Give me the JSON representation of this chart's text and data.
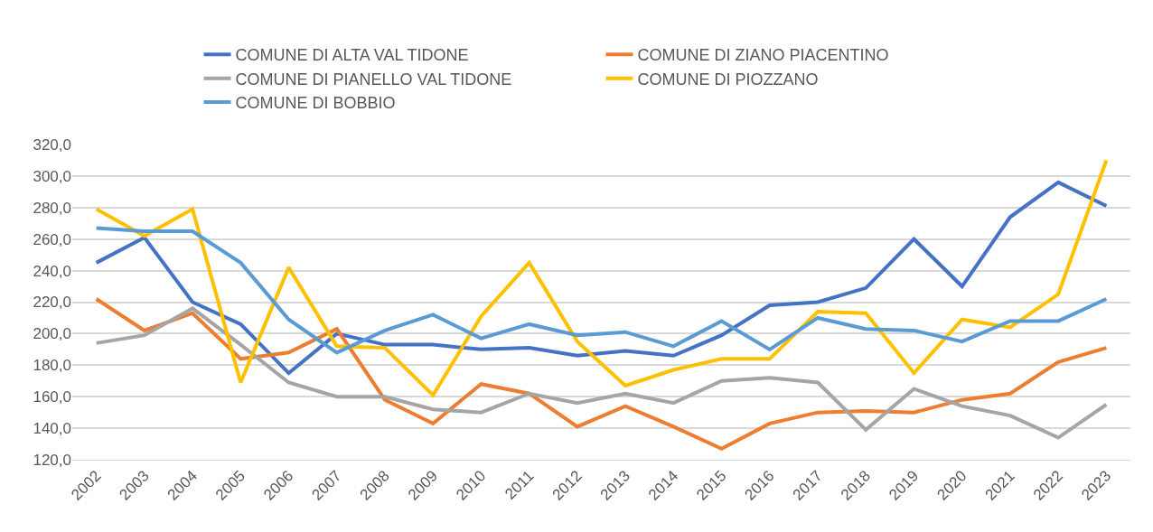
{
  "chart_data": {
    "type": "line",
    "categories": [
      "2002",
      "2003",
      "2004",
      "2005",
      "2006",
      "2007",
      "2008",
      "2009",
      "2010",
      "2011",
      "2012",
      "2013",
      "2014",
      "2015",
      "2016",
      "2017",
      "2018",
      "2019",
      "2020",
      "2021",
      "2022",
      "2023"
    ],
    "series": [
      {
        "name": "COMUNE DI ALTA VAL TIDONE",
        "color": "#4472c4",
        "values": [
          245,
          261,
          220,
          206,
          175,
          200,
          193,
          193,
          190,
          191,
          186,
          189,
          186,
          199,
          218,
          220,
          229,
          260,
          230,
          274,
          296,
          281
        ]
      },
      {
        "name": "COMUNE DI ZIANO PIACENTINO",
        "color": "#ed7d31",
        "values": [
          222,
          202,
          213,
          184,
          188,
          203,
          158,
          143,
          168,
          162,
          141,
          154,
          141,
          127,
          143,
          150,
          151,
          150,
          158,
          162,
          182,
          191
        ]
      },
      {
        "name": "COMUNE DI PIANELLO VAL TIDONE",
        "color": "#a5a5a5",
        "values": [
          194,
          199,
          216,
          193,
          169,
          160,
          160,
          152,
          150,
          162,
          156,
          162,
          156,
          170,
          172,
          169,
          139,
          165,
          154,
          148,
          134,
          155
        ]
      },
      {
        "name": "COMUNE DI PIOZZANO",
        "color": "#ffc000",
        "values": [
          279,
          262,
          279,
          169,
          242,
          192,
          191,
          161,
          211,
          245,
          195,
          167,
          177,
          184,
          184,
          214,
          213,
          175,
          209,
          204,
          225,
          310
        ]
      },
      {
        "name": "COMUNE DI BOBBIO",
        "color": "#5b9bd5",
        "values": [
          267,
          265,
          265,
          245,
          209,
          188,
          202,
          212,
          197,
          206,
          199,
          201,
          192,
          208,
          190,
          210,
          203,
          202,
          195,
          208,
          208,
          222
        ]
      }
    ],
    "ylim": [
      120,
      320
    ],
    "yticks": [
      {
        "value": 120,
        "label": "120,0"
      },
      {
        "value": 140,
        "label": "140,0"
      },
      {
        "value": 160,
        "label": "160,0"
      },
      {
        "value": 180,
        "label": "180,0"
      },
      {
        "value": 200,
        "label": "200,0"
      },
      {
        "value": 220,
        "label": "220,0"
      },
      {
        "value": 240,
        "label": "240,0"
      },
      {
        "value": 260,
        "label": "260,0"
      },
      {
        "value": 280,
        "label": "280,0"
      },
      {
        "value": 300,
        "label": "300,0"
      },
      {
        "value": 320,
        "label": "320,0"
      }
    ],
    "grid": "y",
    "legend": "top",
    "marker": "none",
    "line_style": "solid"
  }
}
